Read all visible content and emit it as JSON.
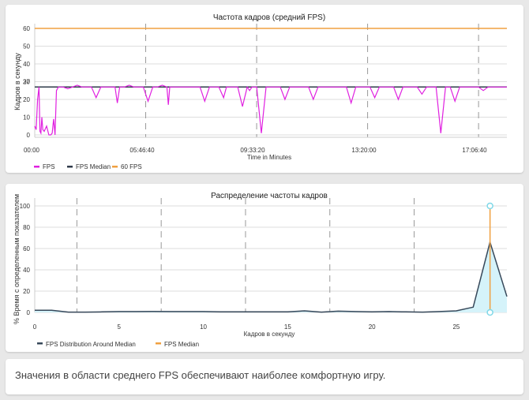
{
  "chart_data": [
    {
      "type": "line",
      "title": "Частота кадров (средний FPS)",
      "xlabel": "Time in Minutes",
      "ylabel": "Кадров в секунду",
      "ylim": [
        0,
        60
      ],
      "y_ticks": [
        "0",
        "10",
        "20",
        "30",
        "40",
        "50",
        "60"
      ],
      "x_ticks": [
        "00:00",
        "05:46:40",
        "09:33:20",
        "13:20:00",
        "17:06:40"
      ],
      "y_extra_tick": "27",
      "grid": true,
      "legend_position": "bottom-left",
      "legend": [
        "FPS",
        "FPS Median",
        "60 FPS"
      ],
      "colors": {
        "fps": "#e020e0",
        "median": "#2f3b4a",
        "sixty": "#f0a040"
      },
      "median_value": 27,
      "sixty_value": 60,
      "fps_series": {
        "x": [
          0,
          0.3,
          0.6,
          0.9,
          1.1,
          1.3,
          1.5,
          1.7,
          2,
          2.5,
          3,
          3.4,
          3.7,
          4,
          4.3,
          4.6,
          5,
          6,
          7,
          8,
          9,
          10,
          11,
          12,
          13,
          14,
          15,
          16,
          17,
          17.5,
          18,
          19,
          20,
          21,
          22,
          23,
          24,
          25,
          26,
          27,
          28,
          28.3,
          28.6,
          29,
          30,
          31,
          32,
          33,
          34,
          35,
          36,
          37,
          38,
          39,
          40,
          40.3,
          40.6,
          41,
          42,
          43,
          44,
          45,
          45.5,
          46,
          47,
          48,
          49,
          50,
          51,
          52,
          53,
          54,
          55,
          56,
          57,
          58,
          59,
          60,
          61,
          62,
          63,
          64,
          65,
          66,
          67,
          68,
          69,
          70,
          71,
          72,
          73,
          74,
          75,
          76,
          77,
          78,
          79,
          80,
          81,
          82,
          83,
          84,
          85,
          86,
          87,
          88,
          89,
          90,
          91,
          92,
          93,
          94,
          95,
          96,
          97,
          98,
          99,
          100
        ],
        "y": [
          5,
          3,
          20,
          27,
          2,
          1,
          10,
          3,
          2,
          5,
          0,
          0,
          1,
          9,
          0,
          25,
          27,
          27,
          26,
          27,
          28,
          27,
          27,
          27,
          21,
          27,
          27,
          27,
          27,
          18,
          27,
          27,
          28,
          27,
          27,
          27,
          19,
          27,
          27,
          28,
          27,
          17,
          27,
          27,
          27,
          27,
          27,
          27,
          27,
          27,
          19,
          27,
          27,
          27,
          21,
          24,
          27,
          27,
          27,
          27,
          16,
          27,
          25,
          27,
          27,
          1,
          27,
          27,
          27,
          27,
          20,
          27,
          27,
          27,
          27,
          27,
          20,
          27,
          27,
          27,
          27,
          27,
          27,
          27,
          18,
          27,
          27,
          27,
          27,
          21,
          27,
          27,
          27,
          27,
          20,
          27,
          27,
          27,
          27,
          23,
          27,
          27,
          27,
          1,
          27,
          27,
          19,
          27,
          27,
          27,
          27,
          27,
          25,
          27,
          27,
          27,
          27,
          27
        ]
      }
    },
    {
      "type": "area",
      "title": "Распределение частоты кадров",
      "xlabel": "Кадров в секунду",
      "ylabel": "% Время с определенным показателем",
      "xlim": [
        0,
        28
      ],
      "ylim": [
        0,
        100
      ],
      "x_ticks": [
        0,
        5,
        10,
        15,
        20,
        25
      ],
      "y_ticks": [
        0,
        20,
        40,
        60,
        80,
        100
      ],
      "grid": true,
      "legend_position": "bottom-left",
      "legend": [
        "FPS Distribution Around Median",
        "FPS Median"
      ],
      "colors": {
        "line": "#37485a",
        "fill": "#d5f3fa",
        "median": "#f0a040",
        "marker": "#7fd8e8"
      },
      "median_value": 27,
      "median_range": [
        0,
        100
      ],
      "series": {
        "x": [
          0,
          1,
          2,
          3,
          4,
          5,
          6,
          7,
          8,
          9,
          10,
          11,
          12,
          13,
          14,
          15,
          16,
          17,
          18,
          19,
          20,
          21,
          22,
          23,
          24,
          25,
          26,
          27,
          28
        ],
        "y": [
          2,
          2,
          0.3,
          0.3,
          0.5,
          0.8,
          0.8,
          1,
          0.8,
          0.8,
          0.8,
          0.5,
          0.5,
          0.5,
          0.5,
          0.5,
          1.5,
          0.3,
          1.2,
          0.8,
          0.5,
          0.8,
          0.5,
          0.3,
          0.8,
          1.5,
          5,
          66,
          15
        ]
      }
    }
  ],
  "footer": {
    "text": "Значения в области среднего FPS обеспечивают наиболее комфортную игру."
  }
}
